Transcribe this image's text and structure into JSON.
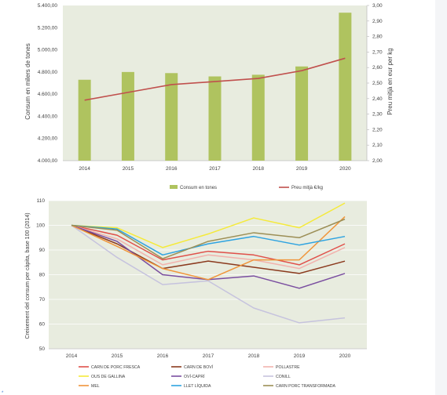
{
  "charts": [
    {
      "type": "bar+line",
      "categories": [
        "2014",
        "2015",
        "2016",
        "2017",
        "2018",
        "2019",
        "2020"
      ],
      "bar_series": {
        "name": "Consum en tones",
        "color": "#afc35f",
        "values": [
          4730,
          4800,
          4790,
          4760,
          4775,
          4850,
          5335
        ]
      },
      "line_series": {
        "name": "Preu mitjà €/kg",
        "color": "#c0504d",
        "values": [
          2.39,
          2.44,
          2.49,
          2.51,
          2.53,
          2.58,
          2.66
        ]
      },
      "ylabel_left": "Consum en milers de tones",
      "ylabel_right": "Preu mitjà en eur per kg",
      "yticks_left": [
        "4.000,00",
        "4.200,00",
        "4.400,00",
        "4.600,00",
        "4.800,00",
        "5.000,00",
        "5.200,00",
        "5.400,00"
      ],
      "yticks_right": [
        "2,00",
        "2,10",
        "2,20",
        "2,30",
        "2,40",
        "2,50",
        "2,60",
        "2,70",
        "2,80",
        "2,90",
        "3,00"
      ],
      "ylim_left": [
        4000,
        5400
      ],
      "ylim_right": [
        2.0,
        3.0
      ],
      "background": "#e8ecdf",
      "legend": "bottom"
    },
    {
      "type": "line",
      "x": [
        "2014",
        "2015",
        "2016",
        "2017",
        "2018",
        "2019",
        "2020"
      ],
      "ylabel": "Creixement del consum per càpita, base 100 (2014)",
      "yticks": [
        "50",
        "60",
        "70",
        "80",
        "90",
        "100",
        "110"
      ],
      "ylim": [
        50,
        110
      ],
      "background": "#e8ecdf",
      "legend": "bottom",
      "series": [
        {
          "name": "CARN DE PORC FRESCA",
          "color": "#e0504a",
          "values": [
            100,
            96,
            86,
            89.5,
            88,
            84,
            92.5
          ]
        },
        {
          "name": "CARN DE BOVÍ",
          "color": "#8b3a1e",
          "values": [
            100,
            92.5,
            82.5,
            85.5,
            83,
            80.5,
            85.5
          ]
        },
        {
          "name": "POLLASTRE",
          "color": "#f2b2ad",
          "values": [
            100,
            94.5,
            84,
            88,
            86,
            82.5,
            91
          ]
        },
        {
          "name": "OUS DE GALLINA",
          "color": "#f5ea3a",
          "values": [
            100,
            99,
            91,
            96.5,
            103,
            99,
            109
          ]
        },
        {
          "name": "OVÍ-CAPRÍ",
          "color": "#7a4ea0",
          "values": [
            100,
            93.5,
            80,
            78,
            79.5,
            74.5,
            80.5
          ]
        },
        {
          "name": "CONILL",
          "color": "#c6c3de",
          "values": [
            100,
            87,
            76,
            77.5,
            66.5,
            60.5,
            62.5
          ]
        },
        {
          "name": "MEL",
          "color": "#f0953a",
          "values": [
            100,
            91.5,
            82.5,
            78,
            86,
            86,
            103.5
          ]
        },
        {
          "name": "LLET LÍQUIDA",
          "color": "#2ea3e0",
          "values": [
            100,
            98.5,
            88,
            92.5,
            95.5,
            92,
            95.5
          ]
        },
        {
          "name": "CARN PORC TRANSFORMADA",
          "color": "#9c8f56",
          "values": [
            100,
            98,
            86.5,
            93.5,
            97,
            95,
            102.5
          ]
        }
      ]
    }
  ]
}
